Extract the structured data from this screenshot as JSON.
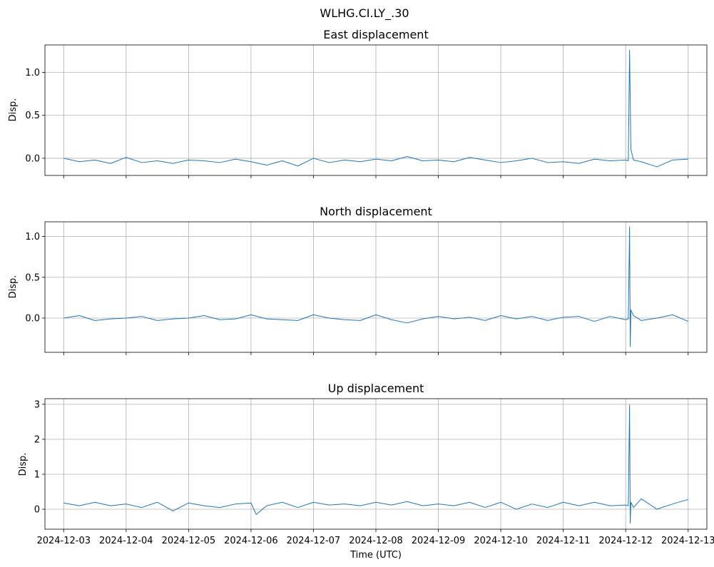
{
  "figure": {
    "title": "WLHG.CI.LY_.30"
  },
  "colors": {
    "series": "#1f77b4",
    "grid": "#b0b0b0",
    "axes": "#000000"
  },
  "chart_data": [
    {
      "type": "line",
      "title": "East displacement",
      "xlabel": "",
      "ylabel": "Disp.",
      "grid": true,
      "xlim": [
        "2024-12-02T16:48",
        "2024-12-13T07:12"
      ],
      "ylim": [
        -0.2,
        1.32
      ],
      "yticks": [
        0.0,
        0.5,
        1.0
      ],
      "ytick_labels": [
        "0.0",
        "0.5",
        "1.0"
      ],
      "xtick_labels": [],
      "series": [
        {
          "x": [
            "2024-12-03T00:00",
            "2024-12-03T06:00",
            "2024-12-03T12:00",
            "2024-12-03T18:00",
            "2024-12-04T00:00",
            "2024-12-04T06:00",
            "2024-12-04T12:00",
            "2024-12-04T18:00",
            "2024-12-05T00:00",
            "2024-12-05T06:00",
            "2024-12-05T12:00",
            "2024-12-05T18:00",
            "2024-12-06T00:00",
            "2024-12-06T06:00",
            "2024-12-06T12:00",
            "2024-12-06T18:00",
            "2024-12-07T00:00",
            "2024-12-07T06:00",
            "2024-12-07T12:00",
            "2024-12-07T18:00",
            "2024-12-08T00:00",
            "2024-12-08T06:00",
            "2024-12-08T12:00",
            "2024-12-08T18:00",
            "2024-12-09T00:00",
            "2024-12-09T06:00",
            "2024-12-09T12:00",
            "2024-12-09T18:00",
            "2024-12-10T00:00",
            "2024-12-10T06:00",
            "2024-12-10T12:00",
            "2024-12-10T18:00",
            "2024-12-11T00:00",
            "2024-12-11T06:00",
            "2024-12-11T12:00",
            "2024-12-11T18:00",
            "2024-12-12T00:00",
            "2024-12-12T01:00",
            "2024-12-12T01:30",
            "2024-12-12T02:00",
            "2024-12-12T03:00",
            "2024-12-12T06:00",
            "2024-12-12T12:00",
            "2024-12-12T18:00",
            "2024-12-13T00:00"
          ],
          "y": [
            0.0,
            -0.04,
            -0.02,
            -0.06,
            0.01,
            -0.05,
            -0.03,
            -0.06,
            -0.02,
            -0.03,
            -0.05,
            -0.01,
            -0.04,
            -0.08,
            -0.03,
            -0.09,
            0.0,
            -0.05,
            -0.02,
            -0.04,
            -0.01,
            -0.03,
            0.02,
            -0.03,
            -0.02,
            -0.04,
            0.01,
            -0.02,
            -0.05,
            -0.03,
            0.0,
            -0.05,
            -0.04,
            -0.06,
            -0.01,
            -0.03,
            -0.02,
            -0.03,
            1.26,
            0.1,
            -0.02,
            -0.04,
            -0.1,
            -0.02,
            -0.01
          ]
        }
      ]
    },
    {
      "type": "line",
      "title": "North displacement",
      "xlabel": "",
      "ylabel": "Disp.",
      "grid": true,
      "xlim": [
        "2024-12-02T16:48",
        "2024-12-13T07:12"
      ],
      "ylim": [
        -0.42,
        1.18
      ],
      "yticks": [
        0.0,
        0.5,
        1.0
      ],
      "ytick_labels": [
        "0.0",
        "0.5",
        "1.0"
      ],
      "xtick_labels": [],
      "series": [
        {
          "x": [
            "2024-12-03T00:00",
            "2024-12-03T06:00",
            "2024-12-03T12:00",
            "2024-12-03T18:00",
            "2024-12-04T00:00",
            "2024-12-04T06:00",
            "2024-12-04T12:00",
            "2024-12-04T18:00",
            "2024-12-05T00:00",
            "2024-12-05T06:00",
            "2024-12-05T12:00",
            "2024-12-05T18:00",
            "2024-12-06T00:00",
            "2024-12-06T06:00",
            "2024-12-06T12:00",
            "2024-12-06T18:00",
            "2024-12-07T00:00",
            "2024-12-07T06:00",
            "2024-12-07T12:00",
            "2024-12-07T18:00",
            "2024-12-08T00:00",
            "2024-12-08T06:00",
            "2024-12-08T12:00",
            "2024-12-08T18:00",
            "2024-12-09T00:00",
            "2024-12-09T06:00",
            "2024-12-09T12:00",
            "2024-12-09T18:00",
            "2024-12-10T00:00",
            "2024-12-10T06:00",
            "2024-12-10T12:00",
            "2024-12-10T18:00",
            "2024-12-11T00:00",
            "2024-12-11T06:00",
            "2024-12-11T12:00",
            "2024-12-11T18:00",
            "2024-12-12T00:00",
            "2024-12-12T01:00",
            "2024-12-12T01:30",
            "2024-12-12T01:45",
            "2024-12-12T02:00",
            "2024-12-12T03:00",
            "2024-12-12T06:00",
            "2024-12-12T12:00",
            "2024-12-12T18:00",
            "2024-12-13T00:00"
          ],
          "y": [
            0.0,
            0.03,
            -0.03,
            -0.01,
            0.0,
            0.02,
            -0.03,
            -0.01,
            0.0,
            0.03,
            -0.02,
            -0.01,
            0.04,
            -0.01,
            -0.02,
            -0.03,
            0.04,
            0.0,
            -0.02,
            -0.03,
            0.04,
            -0.02,
            -0.06,
            -0.01,
            0.02,
            -0.01,
            0.01,
            -0.03,
            0.03,
            -0.01,
            0.02,
            -0.03,
            0.01,
            0.02,
            -0.04,
            0.02,
            -0.02,
            -0.01,
            1.12,
            -0.35,
            0.1,
            0.03,
            -0.03,
            0.0,
            0.04,
            -0.04
          ]
        }
      ]
    },
    {
      "type": "line",
      "title": "Up displacement",
      "xlabel": "Time (UTC)",
      "ylabel": "Disp.",
      "grid": true,
      "xlim": [
        "2024-12-02T16:48",
        "2024-12-13T07:12"
      ],
      "ylim": [
        -0.57,
        3.16
      ],
      "yticks": [
        0,
        1,
        2,
        3
      ],
      "ytick_labels": [
        "0",
        "1",
        "2",
        "3"
      ],
      "xtick_labels": [
        "2024-12-03",
        "2024-12-04",
        "2024-12-05",
        "2024-12-06",
        "2024-12-07",
        "2024-12-08",
        "2024-12-09",
        "2024-12-10",
        "2024-12-11",
        "2024-12-12",
        "2024-12-13"
      ],
      "series": [
        {
          "x": [
            "2024-12-03T00:00",
            "2024-12-03T06:00",
            "2024-12-03T12:00",
            "2024-12-03T18:00",
            "2024-12-04T00:00",
            "2024-12-04T06:00",
            "2024-12-04T12:00",
            "2024-12-04T18:00",
            "2024-12-05T00:00",
            "2024-12-05T06:00",
            "2024-12-05T12:00",
            "2024-12-05T18:00",
            "2024-12-06T00:00",
            "2024-12-06T02:00",
            "2024-12-06T06:00",
            "2024-12-06T12:00",
            "2024-12-06T18:00",
            "2024-12-07T00:00",
            "2024-12-07T06:00",
            "2024-12-07T12:00",
            "2024-12-07T18:00",
            "2024-12-08T00:00",
            "2024-12-08T06:00",
            "2024-12-08T12:00",
            "2024-12-08T18:00",
            "2024-12-09T00:00",
            "2024-12-09T06:00",
            "2024-12-09T12:00",
            "2024-12-09T18:00",
            "2024-12-10T00:00",
            "2024-12-10T06:00",
            "2024-12-10T12:00",
            "2024-12-10T18:00",
            "2024-12-11T00:00",
            "2024-12-11T06:00",
            "2024-12-11T12:00",
            "2024-12-11T18:00",
            "2024-12-12T00:00",
            "2024-12-12T01:00",
            "2024-12-12T01:30",
            "2024-12-12T01:45",
            "2024-12-12T02:00",
            "2024-12-12T03:00",
            "2024-12-12T06:00",
            "2024-12-12T12:00",
            "2024-12-12T18:00",
            "2024-12-13T00:00"
          ],
          "y": [
            0.18,
            0.1,
            0.2,
            0.1,
            0.15,
            0.05,
            0.2,
            -0.05,
            0.18,
            0.1,
            0.05,
            0.15,
            0.18,
            -0.15,
            0.1,
            0.2,
            0.05,
            0.2,
            0.12,
            0.15,
            0.1,
            0.2,
            0.12,
            0.22,
            0.1,
            0.15,
            0.1,
            0.2,
            0.05,
            0.2,
            0.0,
            0.15,
            0.05,
            0.2,
            0.1,
            0.2,
            0.1,
            0.12,
            0.1,
            2.98,
            -0.4,
            0.2,
            0.05,
            0.3,
            0.0,
            0.15,
            0.28
          ]
        }
      ]
    }
  ]
}
